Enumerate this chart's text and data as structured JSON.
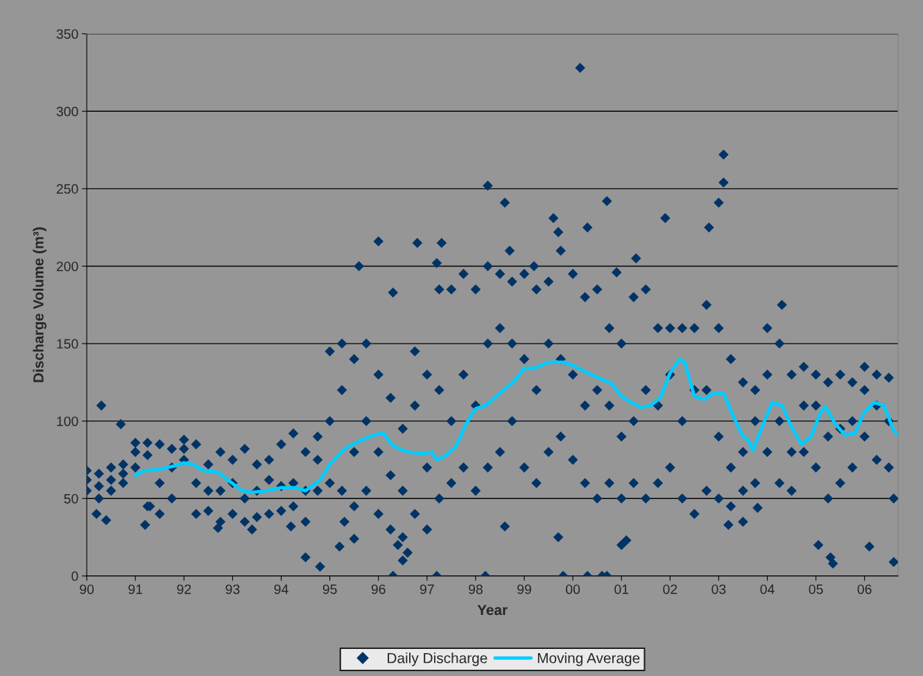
{
  "chart_data": {
    "type": "scatter",
    "xlabel": "Year",
    "ylabel": "Discharge Volume (m³)",
    "xlim": [
      1990,
      2006.69
    ],
    "ylim": [
      0,
      350
    ],
    "xticks": [
      {
        "value": 1990,
        "label": "90"
      },
      {
        "value": 1991,
        "label": "91"
      },
      {
        "value": 1992,
        "label": "92"
      },
      {
        "value": 1993,
        "label": "93"
      },
      {
        "value": 1994,
        "label": "94"
      },
      {
        "value": 1995,
        "label": "95"
      },
      {
        "value": 1996,
        "label": "96"
      },
      {
        "value": 1997,
        "label": "97"
      },
      {
        "value": 1998,
        "label": "98"
      },
      {
        "value": 1999,
        "label": "99"
      },
      {
        "value": 2000,
        "label": "00"
      },
      {
        "value": 2001,
        "label": "01"
      },
      {
        "value": 2002,
        "label": "02"
      },
      {
        "value": 2003,
        "label": "03"
      },
      {
        "value": 2004,
        "label": "04"
      },
      {
        "value": 2005,
        "label": "05"
      },
      {
        "value": 2006,
        "label": "06"
      }
    ],
    "yticks": [
      0,
      50,
      100,
      150,
      200,
      250,
      300,
      350
    ],
    "grid": "y",
    "legend": "bottom",
    "series": [
      {
        "name": "Daily Discharge",
        "marker": "diamond",
        "color": "#003366",
        "x": [
          1990,
          1990,
          1990,
          1990.25,
          1990.25,
          1990.25,
          1990.5,
          1990.5,
          1990.5,
          1990.75,
          1990.75,
          1990.75,
          1991,
          1991,
          1991,
          1991.25,
          1991.25,
          1991.25,
          1991.5,
          1991.5,
          1991.5,
          1991.75,
          1991.75,
          1991.75,
          1992,
          1992,
          1992,
          1992.25,
          1992.25,
          1992.25,
          1992.5,
          1992.5,
          1992.5,
          1992.75,
          1992.75,
          1992.75,
          1993,
          1993,
          1993,
          1993.25,
          1993.25,
          1993.25,
          1993.5,
          1993.5,
          1993.5,
          1993.75,
          1993.75,
          1993.75,
          1994,
          1994,
          1994,
          1994.25,
          1994.25,
          1994.25,
          1994.5,
          1994.5,
          1994.5,
          1994.75,
          1994.75,
          1994.75,
          1995,
          1995,
          1995,
          1995.25,
          1995.25,
          1995.25,
          1995.5,
          1995.5,
          1995.5,
          1995.75,
          1995.75,
          1995.75,
          1996,
          1996,
          1996,
          1996.25,
          1996.25,
          1996.25,
          1996.5,
          1996.5,
          1996.5,
          1996.75,
          1996.75,
          1996.75,
          1997,
          1997,
          1997,
          1997.25,
          1997.25,
          1997.25,
          1997.5,
          1997.5,
          1997.5,
          1997.75,
          1997.75,
          1997.75,
          1998,
          1998,
          1998,
          1998.25,
          1998.25,
          1998.25,
          1998.5,
          1998.5,
          1998.5,
          1998.75,
          1998.75,
          1998.75,
          1999,
          1999,
          1999,
          1999.25,
          1999.25,
          1999.25,
          1999.5,
          1999.5,
          1999.5,
          1999.75,
          1999.75,
          1999.75,
          2000,
          2000,
          2000,
          2000.25,
          2000.25,
          2000.25,
          2000.5,
          2000.5,
          2000.5,
          2000.75,
          2000.75,
          2000.75,
          2001,
          2001,
          2001,
          2001.25,
          2001.25,
          2001.25,
          2001.5,
          2001.5,
          2001.5,
          2001.75,
          2001.75,
          2001.75,
          2002,
          2002,
          2002,
          2002.25,
          2002.25,
          2002.25,
          2002.5,
          2002.5,
          2002.5,
          2002.75,
          2002.75,
          2002.75,
          2003,
          2003,
          2003,
          2003.25,
          2003.25,
          2003.25,
          2003.5,
          2003.5,
          2003.5,
          2003.75,
          2003.75,
          2003.75,
          2004,
          2004,
          2004,
          2004.25,
          2004.25,
          2004.25,
          2004.5,
          2004.5,
          2004.5,
          2004.75,
          2004.75,
          2004.75,
          2005,
          2005,
          2005,
          2005.25,
          2005.25,
          2005.25,
          2005.5,
          2005.5,
          2005.5,
          2005.75,
          2005.75,
          2005.75,
          2006,
          2006,
          2006,
          2006.25,
          2006.25,
          2006.25,
          2006.5,
          2006.5,
          2006.5,
          2000.15,
          2003.1,
          2003.1,
          1998.25,
          1998.6,
          2000.7,
          1999.6,
          2001.9,
          2003,
          2002.8,
          2000.3,
          1996,
          1996.8,
          1997.3,
          1999.7,
          1998.7,
          1995.6,
          1997.2,
          1999.2,
          1996.3,
          2004.3,
          2000.9,
          2001.3,
          1990.3,
          1990.7,
          1990.2,
          1990.4,
          1994.5,
          1994.8,
          1995.2,
          1995.5,
          1996.3,
          1997.2,
          1998.2,
          1999.8,
          2000.3,
          2000.6,
          2000.7,
          1996.5,
          1999.7,
          2001,
          2001.1,
          2005.05,
          2005.3,
          2005.35,
          2006.1,
          2006.6,
          2006.6,
          2003.5,
          2003.2,
          2003.8,
          1998.6,
          1995.3,
          1991.2,
          1991.3,
          1993.4,
          1992.7,
          1994.2,
          1996.6,
          1996.4
        ],
        "values": [
          55,
          62,
          68,
          50,
          58,
          66,
          55,
          62,
          70,
          60,
          66,
          72,
          70,
          80,
          86,
          45,
          78,
          86,
          40,
          60,
          85,
          50,
          70,
          82,
          75,
          82,
          88,
          40,
          60,
          85,
          42,
          55,
          72,
          35,
          55,
          80,
          40,
          60,
          75,
          35,
          50,
          82,
          38,
          55,
          72,
          40,
          62,
          75,
          42,
          58,
          85,
          45,
          60,
          92,
          35,
          55,
          80,
          55,
          75,
          90,
          60,
          100,
          145,
          55,
          120,
          150,
          45,
          80,
          140,
          55,
          100,
          150,
          40,
          80,
          130,
          30,
          65,
          115,
          25,
          55,
          95,
          40,
          110,
          145,
          30,
          70,
          130,
          50,
          120,
          185,
          60,
          100,
          185,
          70,
          130,
          195,
          55,
          110,
          185,
          70,
          150,
          200,
          80,
          160,
          195,
          100,
          150,
          190,
          70,
          140,
          195,
          60,
          120,
          185,
          80,
          150,
          190,
          90,
          140,
          210,
          75,
          130,
          195,
          60,
          110,
          180,
          50,
          120,
          185,
          60,
          110,
          160,
          50,
          90,
          150,
          60,
          100,
          180,
          50,
          120,
          185,
          60,
          110,
          160,
          70,
          130,
          160,
          50,
          100,
          160,
          40,
          120,
          160,
          55,
          120,
          175,
          50,
          90,
          160,
          45,
          70,
          140,
          55,
          80,
          125,
          60,
          100,
          120,
          80,
          130,
          160,
          60,
          100,
          150,
          55,
          80,
          130,
          80,
          110,
          135,
          70,
          110,
          130,
          50,
          90,
          125,
          60,
          95,
          130,
          70,
          100,
          125,
          90,
          120,
          135,
          75,
          110,
          130,
          70,
          100,
          128,
          328,
          272,
          254,
          252,
          241,
          242,
          231,
          231,
          241,
          225,
          225,
          216,
          215,
          215,
          222,
          210,
          200,
          202,
          200,
          183,
          175,
          196,
          205,
          110,
          98,
          40,
          36,
          12,
          6,
          19,
          24,
          0,
          0,
          0,
          0,
          0,
          0,
          0,
          10,
          25,
          20,
          23,
          20,
          12,
          8,
          19,
          9,
          50,
          35,
          33,
          44,
          32,
          35,
          33,
          45,
          30,
          31,
          32,
          15,
          20
        ]
      },
      {
        "name": "Moving Average",
        "type": "line",
        "marker": "none",
        "line_style": "solid",
        "color": "#00ccff",
        "x": [
          1991,
          1991.2,
          1991.5,
          1991.8,
          1992,
          1992.2,
          1992.4,
          1992.7,
          1992.9,
          1993.2,
          1993.4,
          1993.7,
          1994,
          1994.3,
          1994.5,
          1994.8,
          1995,
          1995.3,
          1995.6,
          1995.9,
          1996.1,
          1996.3,
          1996.6,
          1996.9,
          1997.1,
          1997.2,
          1997.4,
          1997.6,
          1997.8,
          1998,
          1998.2,
          1998.5,
          1998.8,
          1999,
          1999.2,
          1999.5,
          1999.8,
          2000,
          2000.3,
          2000.6,
          2000.8,
          2001,
          2001.2,
          2001.4,
          2001.6,
          2001.8,
          2002,
          2002.2,
          2002.3,
          2002.5,
          2002.7,
          2002.9,
          2003.1,
          2003.3,
          2003.5,
          2003.6,
          2003.7,
          2003.9,
          2004.1,
          2004.3,
          2004.5,
          2004.7,
          2004.9,
          2005.1,
          2005.2,
          2005.4,
          2005.6,
          2005.8,
          2006,
          2006.2,
          2006.4,
          2006.6,
          2006.69
        ],
        "values": [
          65,
          68,
          69,
          71,
          73,
          72,
          68,
          67,
          62,
          55,
          54,
          55,
          57,
          57,
          55,
          62,
          72,
          82,
          87,
          91,
          92,
          84,
          80,
          79,
          80,
          75,
          78,
          84,
          98,
          108,
          110,
          118,
          126,
          134,
          134,
          138,
          138,
          136,
          131,
          127,
          124,
          116,
          112,
          109,
          110,
          115,
          131,
          140,
          138,
          116,
          114,
          118,
          118,
          103,
          90,
          88,
          81,
          97,
          112,
          110,
          96,
          85,
          90,
          106,
          109,
          98,
          91,
          92,
          106,
          112,
          110,
          94,
          91
        ]
      }
    ]
  }
}
